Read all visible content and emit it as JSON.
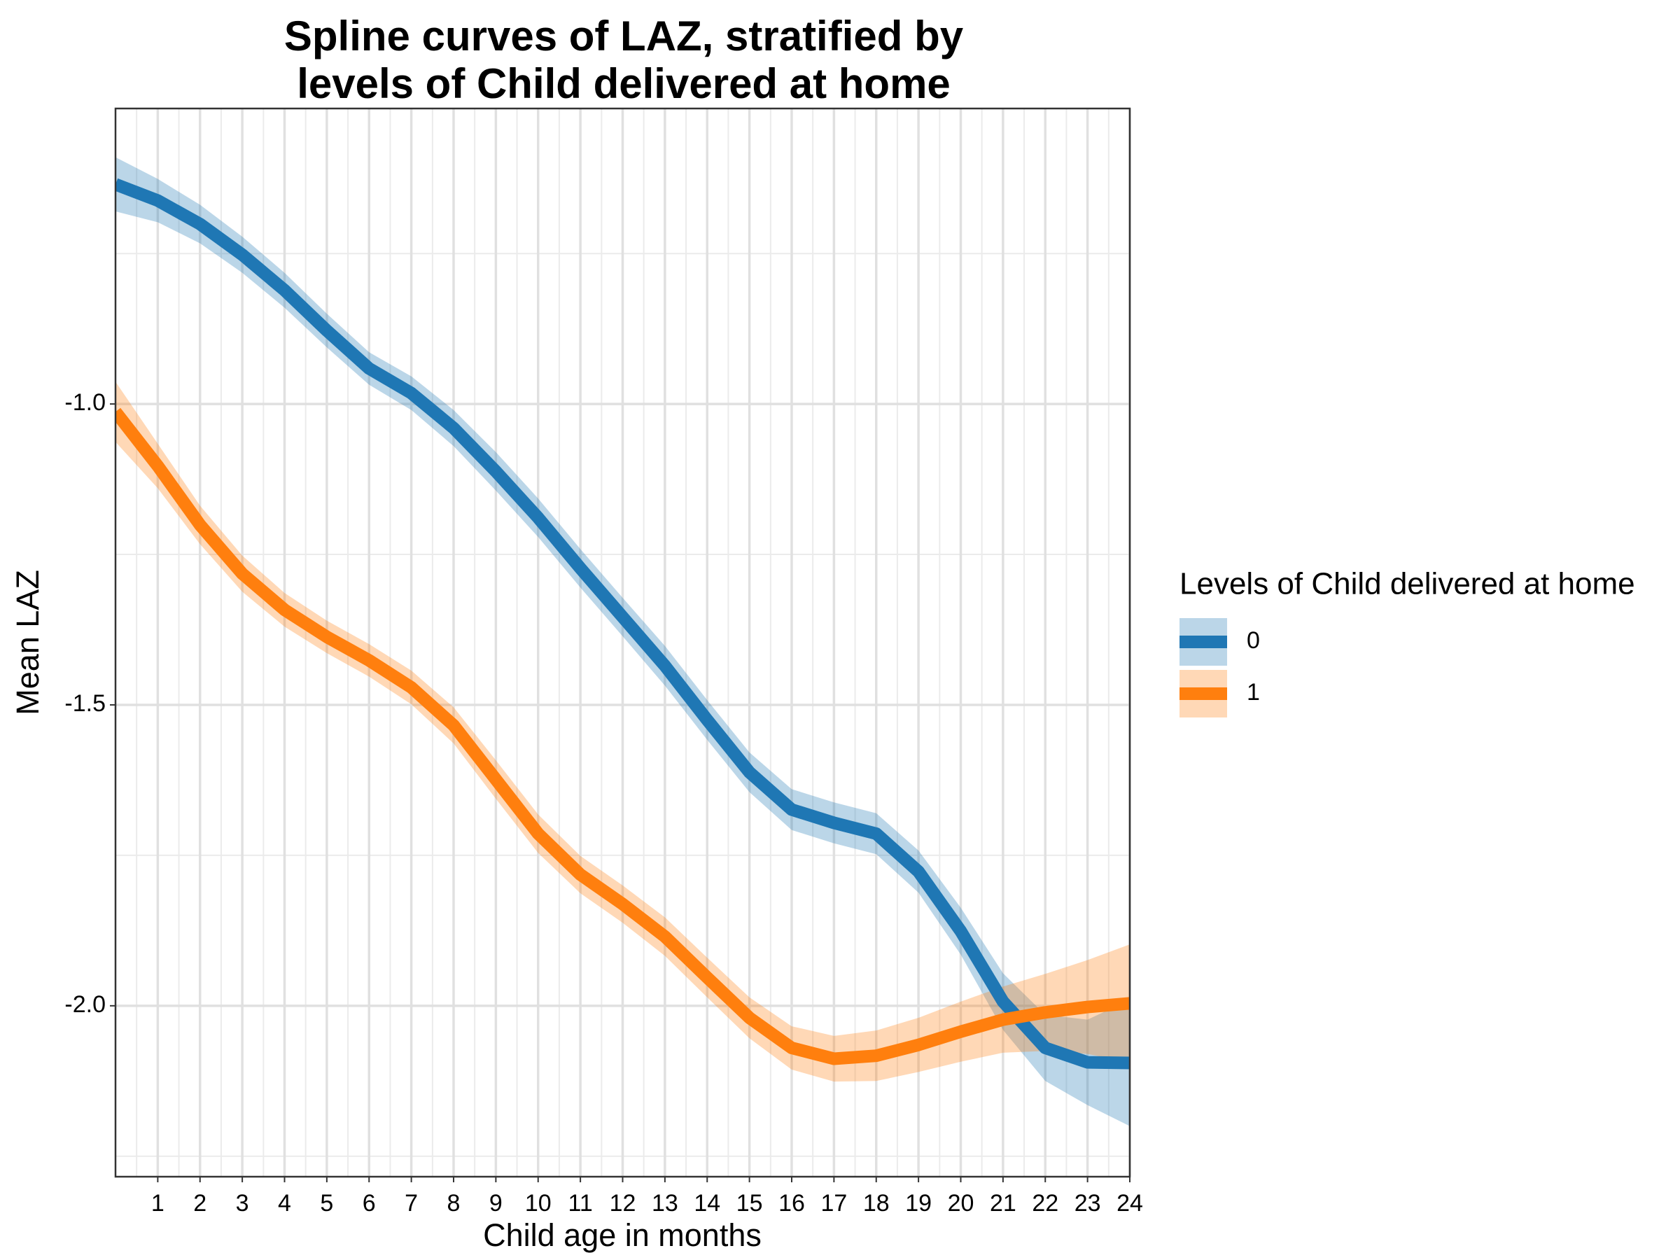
{
  "chart_data": {
    "type": "line",
    "title": [
      "Spline curves of LAZ, stratified by",
      "levels of Child delivered at home"
    ],
    "x_label": "Child age in months",
    "y_label": "Mean LAZ",
    "legend_title": "Levels of Child delivered at home",
    "legend_position": "right",
    "grid": true,
    "x": [
      0,
      1,
      2,
      3,
      4,
      5,
      6,
      7,
      8,
      9,
      10,
      11,
      12,
      13,
      14,
      15,
      16,
      17,
      18,
      19,
      20,
      21,
      22,
      23,
      24
    ],
    "xlim": [
      0,
      24
    ],
    "xticks": [
      1,
      2,
      3,
      4,
      5,
      6,
      7,
      8,
      9,
      10,
      11,
      12,
      13,
      14,
      15,
      16,
      17,
      18,
      19,
      20,
      21,
      22,
      23,
      24
    ],
    "ylim": [
      -2.284,
      -0.509
    ],
    "yticks": [
      {
        "value": -2,
        "label": "-2.0"
      },
      -1.5,
      {
        "value": -1,
        "label": "-1.0"
      }
    ],
    "series": [
      {
        "name": "0",
        "color": "#1f77b4",
        "values": [
          -0.635,
          -0.662,
          -0.701,
          -0.752,
          -0.811,
          -0.878,
          -0.941,
          -0.982,
          -1.04,
          -1.112,
          -1.189,
          -1.273,
          -1.354,
          -1.435,
          -1.525,
          -1.612,
          -1.674,
          -1.696,
          -1.714,
          -1.777,
          -1.876,
          -1.993,
          -2.07,
          -2.094,
          -2.095
        ],
        "lower": [
          -0.68,
          -0.698,
          -0.733,
          -0.782,
          -0.84,
          -0.906,
          -0.968,
          -1.01,
          -1.07,
          -1.144,
          -1.221,
          -1.305,
          -1.386,
          -1.468,
          -1.558,
          -1.645,
          -1.708,
          -1.73,
          -1.748,
          -1.812,
          -1.915,
          -2.04,
          -2.125,
          -2.165,
          -2.2
        ],
        "upper": [
          -0.59,
          -0.626,
          -0.669,
          -0.722,
          -0.782,
          -0.85,
          -0.914,
          -0.954,
          -1.01,
          -1.08,
          -1.157,
          -1.241,
          -1.322,
          -1.402,
          -1.492,
          -1.579,
          -1.64,
          -1.662,
          -1.68,
          -1.742,
          -1.837,
          -1.946,
          -2.015,
          -2.023,
          -1.99
        ]
      },
      {
        "name": "1",
        "color": "#ff7f0e",
        "values": [
          -1.013,
          -1.103,
          -1.201,
          -1.282,
          -1.342,
          -1.387,
          -1.426,
          -1.471,
          -1.534,
          -1.624,
          -1.714,
          -1.782,
          -1.831,
          -1.885,
          -1.953,
          -2.02,
          -2.07,
          -2.088,
          -2.083,
          -2.065,
          -2.043,
          -2.023,
          -2.011,
          -2.002,
          -1.996
        ],
        "lower": [
          -1.063,
          -1.14,
          -1.233,
          -1.312,
          -1.37,
          -1.414,
          -1.453,
          -1.499,
          -1.564,
          -1.656,
          -1.746,
          -1.813,
          -1.862,
          -1.917,
          -1.986,
          -2.054,
          -2.106,
          -2.126,
          -2.125,
          -2.11,
          -2.093,
          -2.078,
          -2.075,
          -2.08,
          -2.094
        ],
        "upper": [
          -0.963,
          -1.066,
          -1.169,
          -1.252,
          -1.314,
          -1.36,
          -1.399,
          -1.443,
          -1.504,
          -1.592,
          -1.682,
          -1.751,
          -1.8,
          -1.853,
          -1.92,
          -1.986,
          -2.034,
          -2.05,
          -2.041,
          -2.02,
          -1.993,
          -1.968,
          -1.947,
          -1.924,
          -1.898
        ]
      }
    ]
  }
}
